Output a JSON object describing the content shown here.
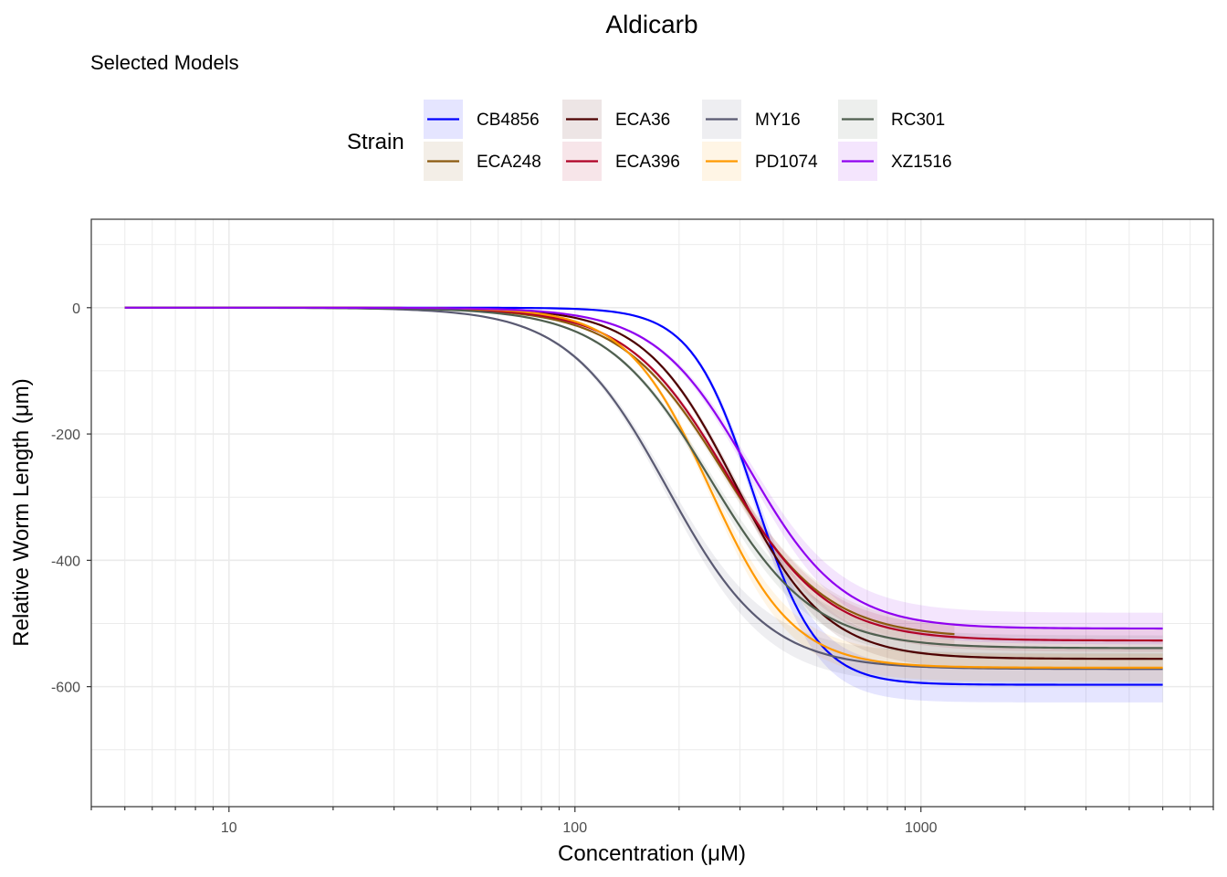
{
  "chart_data": {
    "type": "line",
    "title": "Aldicarb",
    "subtitle": "Selected Models",
    "xlabel": "Concentration (μM)",
    "ylabel": "Relative Worm Length (μm)",
    "x_scale": "log10",
    "xlim": [
      4,
      7000
    ],
    "ylim": [
      -790,
      140
    ],
    "x_ticks": [
      10,
      100,
      1000
    ],
    "x_tick_labels": [
      "10",
      "100",
      "1000"
    ],
    "y_ticks": [
      0,
      -200,
      -400,
      -600
    ],
    "y_tick_labels": [
      "0",
      "-200",
      "-400",
      "-600"
    ],
    "grid": true,
    "legend": {
      "title": "Strain",
      "position": "top"
    },
    "series": [
      {
        "name": "CB4856",
        "color": "#0000FF",
        "ec50": 330,
        "hill": 4.8,
        "lower": -597,
        "ci": 28,
        "x_range": [
          5,
          5000
        ]
      },
      {
        "name": "ECA248",
        "color": "#8B5A0F",
        "ec50": 270,
        "hill": 2.9,
        "lower": -523,
        "ci": 18,
        "x_range": [
          5,
          1250
        ]
      },
      {
        "name": "ECA36",
        "color": "#4D0000",
        "ec50": 290,
        "hill": 3.3,
        "lower": -556,
        "ci": 18,
        "x_range": [
          5,
          5000
        ]
      },
      {
        "name": "ECA396",
        "color": "#B00025",
        "ec50": 275,
        "hill": 3.0,
        "lower": -527,
        "ci": 18,
        "x_range": [
          5,
          5000
        ]
      },
      {
        "name": "MY16",
        "color": "#5A5A72",
        "ec50": 185,
        "hill": 3.0,
        "lower": -572,
        "ci": 25,
        "x_range": [
          5,
          5000
        ]
      },
      {
        "name": "PD1074",
        "color": "#FF9900",
        "ec50": 245,
        "hill": 3.6,
        "lower": -570,
        "ci": 22,
        "x_range": [
          5,
          5000
        ]
      },
      {
        "name": "RC301",
        "color": "#4F5F4F",
        "ec50": 245,
        "hill": 2.9,
        "lower": -539,
        "ci": 20,
        "x_range": [
          5,
          5000
        ]
      },
      {
        "name": "XZ1516",
        "color": "#8F00F0",
        "ec50": 318,
        "hill": 3.2,
        "lower": -508,
        "ci": 25,
        "x_range": [
          5,
          5000
        ]
      }
    ]
  }
}
